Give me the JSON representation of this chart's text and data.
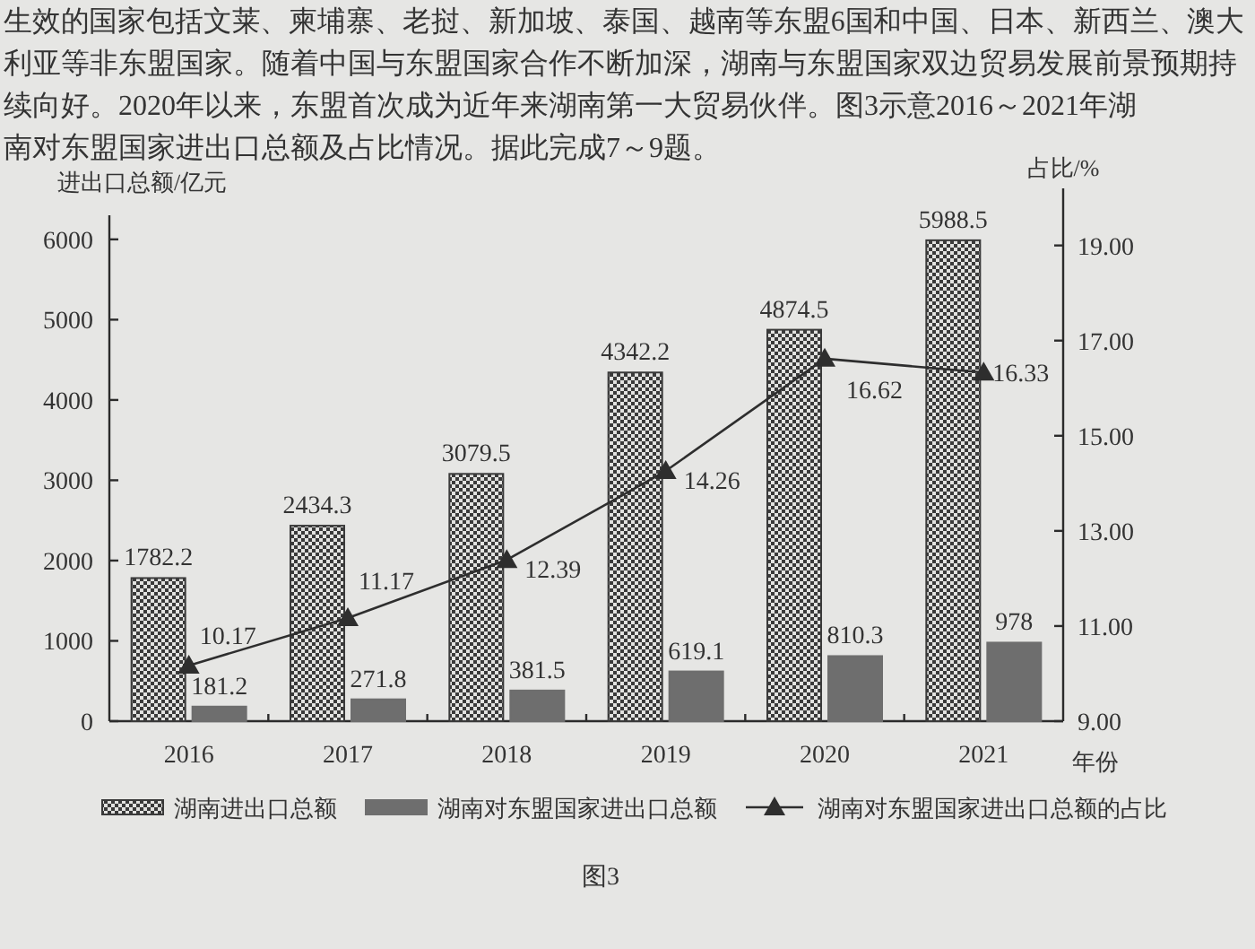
{
  "chart_data": {
    "type": "bar",
    "annotations": [
      "生效的国家包括文莱、柬埔寨、老挝、新加坡、泰国、越南等东盟6国和中国、日本、新西兰、澳大",
      "利亚等非东盟国家。随着中国与东盟国家合作不断加深，湖南与东盟国家双边贸易发展前景预期持",
      "续向好。2020年以来，东盟首次成为近年来湖南第一大贸易伙伴。图3示意2016～2021年湖",
      "南对东盟国家进出口总额及占比情况。据此完成7～9题。",
      "图3"
    ],
    "categories": [
      "2016",
      "2017",
      "2018",
      "2019",
      "2020",
      "2021"
    ],
    "xlabel": "年份",
    "ylabel": "进出口总额/亿元",
    "y2label": "占比/%",
    "series": [
      {
        "name": "湖南进出口总额",
        "color": "#3a3a3a",
        "values": [
          1782.2,
          2434.3,
          3079.5,
          4342.2,
          4874.5,
          5988.5
        ]
      },
      {
        "name": "湖南对东盟国家进出口总额",
        "color": "#6e6e6e",
        "values": [
          181.2,
          271.8,
          381.5,
          619.1,
          810.3,
          978
        ]
      },
      {
        "name": "湖南对东盟国家进出口总额的占比",
        "type": "line",
        "axis": "y2",
        "color": "#2e2e2e",
        "values": [
          10.17,
          11.17,
          12.39,
          14.26,
          16.62,
          16.33
        ]
      }
    ],
    "ylim": [
      0,
      6300
    ],
    "yticks": [
      0,
      1000,
      2000,
      3000,
      4000,
      5000,
      6000
    ],
    "y2lim": [
      9,
      20.2
    ],
    "y2ticks": [
      {
        "value": 9,
        "label": "9.00"
      },
      {
        "value": 11,
        "label": "11.00"
      },
      {
        "value": 13,
        "label": "13.00"
      },
      {
        "value": 15,
        "label": "15.00"
      },
      {
        "value": 17,
        "label": "17.00"
      },
      {
        "value": 19,
        "label": "19.00"
      }
    ],
    "marker": "triangle",
    "line_style": "solid",
    "data_labels": true,
    "legend": "bottom"
  }
}
